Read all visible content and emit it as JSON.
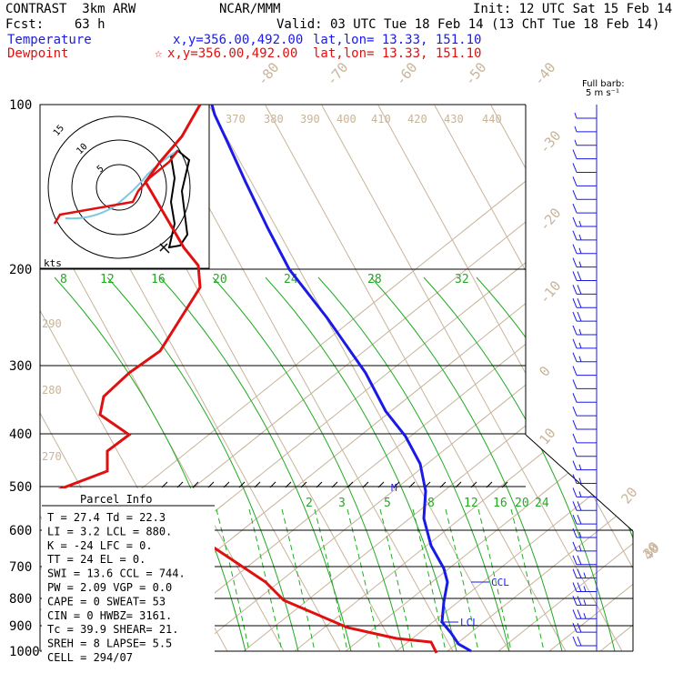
{
  "header": {
    "model": "CONTRAST  3km ARW",
    "center": "NCAR/MMM",
    "init": "Init: 12 UTC Sat 15 Feb 14",
    "fcst": "Fcst:    63 h",
    "valid": "Valid: 03 UTC Tue 18 Feb 14 (13 ChT Tue 18 Feb 14)",
    "temp_label": "Temperature",
    "temp_xy": "x,y=356.00,492.00",
    "temp_latlon": "lat,lon= 13.33, 151.10",
    "dew_label": "Dewpoint",
    "dew_xy": "x,y=356.00,492.00",
    "dew_latlon": "lat,lon= 13.33, 151.10",
    "star": "☆",
    "colors": {
      "temperature": "#1a1ae6",
      "dewpoint": "#e01010",
      "dry_adiabat": "#c8b49a",
      "moist_adiabat": "#22aa22"
    }
  },
  "barb_scale": {
    "line1": "Full barb:",
    "line2": "5 m s⁻¹"
  },
  "hodograph": {
    "rings": [
      "5",
      "10",
      "15"
    ],
    "units": "kts"
  },
  "parcel_info": {
    "title": "Parcel Info",
    "rows": [
      "T  =   27.4  Td =  22.3",
      "LI =    3.2  LCL =  880.",
      "K  =    -24  LFC =    0.",
      "TT =     24  EL  =    0.",
      "SWI =  13.6  CCL =  744.",
      "PW =   2.09  VGP =   0.0",
      "CAPE =    0  SWEAT=   53",
      "CIN =     0  HWBZ= 3161.",
      "Tc =   39.9  SHEAR=  21.",
      "SREH =    8  LAPSE=  5.5",
      "CELL = 294/07"
    ]
  },
  "markers": {
    "ccl": "CCL",
    "lcl": "LCL",
    "m": "M"
  },
  "chart_data": {
    "type": "line",
    "title": "",
    "xlabel": "",
    "ylabel": "",
    "pressure_levels": [
      100,
      200,
      300,
      400,
      500,
      600,
      700,
      800,
      900,
      1000
    ],
    "dry_adiabat_labels": [
      "-80",
      "-70",
      "-60",
      "-50",
      "-40",
      "-30",
      "-20",
      "-10",
      "0",
      "10",
      "20",
      "30",
      "40"
    ],
    "theta_labels": [
      "370",
      "380",
      "390",
      "400",
      "410",
      "420",
      "430",
      "440",
      "290",
      "280",
      "270"
    ],
    "mixing_ratio_labels_upper": [
      "8",
      "12",
      "16",
      "20",
      "24",
      "28",
      "32"
    ],
    "mixing_ratio_labels_lower": [
      "2",
      "3",
      "5",
      "8",
      "12",
      "16",
      "20",
      "24"
    ],
    "series": [
      {
        "name": "Temperature",
        "points": [
          [
            100,
            -76
          ],
          [
            150,
            -66
          ],
          [
            200,
            -54
          ],
          [
            250,
            -43
          ],
          [
            300,
            -33
          ],
          [
            350,
            -24
          ],
          [
            400,
            -16
          ],
          [
            450,
            -9
          ],
          [
            500,
            -5
          ],
          [
            550,
            0
          ],
          [
            600,
            3
          ],
          [
            650,
            8
          ],
          [
            700,
            11
          ],
          [
            750,
            14
          ],
          [
            800,
            16
          ],
          [
            850,
            19
          ],
          [
            900,
            22
          ],
          [
            950,
            25
          ],
          [
            1000,
            27.4
          ]
        ]
      },
      {
        "name": "Dewpoint",
        "points": [
          [
            100,
            -88
          ],
          [
            150,
            -92
          ],
          [
            200,
            -80
          ],
          [
            250,
            -86
          ],
          [
            300,
            -95
          ],
          [
            350,
            -102
          ],
          [
            400,
            -82
          ],
          [
            450,
            -85
          ],
          [
            500,
            -96
          ],
          [
            550,
            -85
          ],
          [
            600,
            -68
          ],
          [
            650,
            -50
          ],
          [
            700,
            -36
          ],
          [
            750,
            -22
          ],
          [
            800,
            -12
          ],
          [
            850,
            4
          ],
          [
            900,
            14
          ],
          [
            950,
            21
          ],
          [
            1000,
            22.3
          ]
        ]
      }
    ],
    "wind_barbs_kts": [
      5,
      5,
      5,
      10,
      10,
      10,
      10,
      10,
      15,
      15,
      15,
      15,
      20,
      20,
      20,
      20,
      15,
      15,
      15,
      10,
      10,
      10,
      10,
      10,
      10,
      10,
      15,
      15,
      15,
      20,
      20,
      15,
      15,
      20,
      25,
      25,
      25,
      25,
      20,
      20
    ]
  }
}
